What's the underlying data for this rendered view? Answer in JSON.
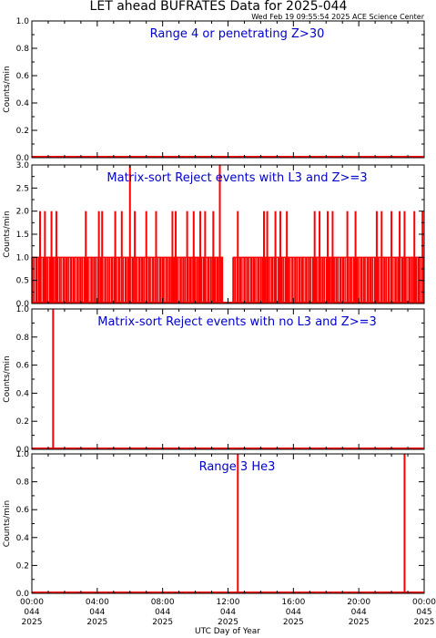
{
  "header": {
    "title": "LET ahead BUFRATES Data for 2025-044",
    "timestamp": "Wed Feb 19 09:55:54 2025 ACE Science Center"
  },
  "colors": {
    "data": "#ff0000",
    "panel_title": "#0000cc",
    "axes": "#000000"
  },
  "chart_data": [
    {
      "type": "line",
      "title": "Range 4 or   penetrating Z>30",
      "ylabel": "Counts/min",
      "ylim": [
        0,
        1
      ],
      "yticks": [
        "0.0",
        "0.2",
        "0.4",
        "0.6",
        "0.8",
        "1.0"
      ],
      "xlim": [
        0,
        24
      ],
      "x_unit": "hours of 2025-044 UTC",
      "baseline": 0,
      "spikes": []
    },
    {
      "type": "line",
      "title": "Matrix-sort Reject events with L3 and Z>=3",
      "ylabel": "Counts/min",
      "ylim": [
        0,
        3
      ],
      "yticks": [
        "0.0",
        "0.5",
        "1.0",
        "1.5",
        "2.0",
        "2.5",
        "3.0"
      ],
      "xlim": [
        0,
        24
      ],
      "x_unit": "hours of 2025-044 UTC",
      "baseline": 0,
      "dense_level": 1,
      "dense_ranges": [
        [
          0,
          11.7
        ],
        [
          12.3,
          24
        ]
      ],
      "spikes": [
        {
          "x": 0.5,
          "y": 2
        },
        {
          "x": 0.8,
          "y": 2
        },
        {
          "x": 1.2,
          "y": 2
        },
        {
          "x": 1.5,
          "y": 2
        },
        {
          "x": 3.3,
          "y": 2
        },
        {
          "x": 4.1,
          "y": 2
        },
        {
          "x": 4.3,
          "y": 2
        },
        {
          "x": 5.1,
          "y": 2
        },
        {
          "x": 5.5,
          "y": 2
        },
        {
          "x": 6.0,
          "y": 3
        },
        {
          "x": 6.3,
          "y": 2
        },
        {
          "x": 7.0,
          "y": 2
        },
        {
          "x": 7.6,
          "y": 2
        },
        {
          "x": 8.6,
          "y": 2
        },
        {
          "x": 8.8,
          "y": 2
        },
        {
          "x": 9.5,
          "y": 2
        },
        {
          "x": 9.9,
          "y": 2
        },
        {
          "x": 10.3,
          "y": 2
        },
        {
          "x": 10.6,
          "y": 2
        },
        {
          "x": 11.1,
          "y": 2
        },
        {
          "x": 11.5,
          "y": 3
        },
        {
          "x": 12.6,
          "y": 2
        },
        {
          "x": 14.2,
          "y": 2
        },
        {
          "x": 14.4,
          "y": 2
        },
        {
          "x": 14.9,
          "y": 2
        },
        {
          "x": 15.2,
          "y": 2
        },
        {
          "x": 15.6,
          "y": 2
        },
        {
          "x": 17.3,
          "y": 2
        },
        {
          "x": 17.6,
          "y": 2
        },
        {
          "x": 18.1,
          "y": 2
        },
        {
          "x": 18.4,
          "y": 2
        },
        {
          "x": 19.3,
          "y": 2
        },
        {
          "x": 19.8,
          "y": 2
        },
        {
          "x": 21.1,
          "y": 2
        },
        {
          "x": 21.4,
          "y": 2
        },
        {
          "x": 22.0,
          "y": 2
        },
        {
          "x": 22.5,
          "y": 2
        },
        {
          "x": 22.8,
          "y": 2
        },
        {
          "x": 23.4,
          "y": 2
        },
        {
          "x": 23.9,
          "y": 2
        }
      ]
    },
    {
      "type": "line",
      "title": "Matrix-sort Reject events with no L3 and Z>=3",
      "ylabel": "Counts/min",
      "ylim": [
        0,
        1
      ],
      "yticks": [
        "0.0",
        "0.2",
        "0.4",
        "0.6",
        "0.8",
        "1.0"
      ],
      "xlim": [
        0,
        24
      ],
      "x_unit": "hours of 2025-044 UTC",
      "baseline": 0,
      "spikes": [
        {
          "x": 1.3,
          "y": 1
        }
      ]
    },
    {
      "type": "line",
      "title": "Range 3 He3",
      "ylabel": "Counts/min",
      "ylim": [
        0,
        1
      ],
      "yticks": [
        "0.0",
        "0.2",
        "0.4",
        "0.6",
        "0.8",
        "1.0"
      ],
      "xlim": [
        0,
        24
      ],
      "x_unit": "hours of 2025-044 UTC",
      "baseline": 0,
      "spikes": [
        {
          "x": 12.6,
          "y": 1
        },
        {
          "x": 22.8,
          "y": 1
        }
      ]
    }
  ],
  "x_axis": {
    "label": "UTC Day of Year",
    "ticks": [
      {
        "time": "00:00",
        "day": "044",
        "year": "2025"
      },
      {
        "time": "04:00",
        "day": "044",
        "year": "2025"
      },
      {
        "time": "08:00",
        "day": "044",
        "year": "2025"
      },
      {
        "time": "12:00",
        "day": "044",
        "year": "2025"
      },
      {
        "time": "16:00",
        "day": "044",
        "year": "2025"
      },
      {
        "time": "20:00",
        "day": "044",
        "year": "2025"
      },
      {
        "time": "00:00",
        "day": "045",
        "year": "2025"
      }
    ]
  }
}
